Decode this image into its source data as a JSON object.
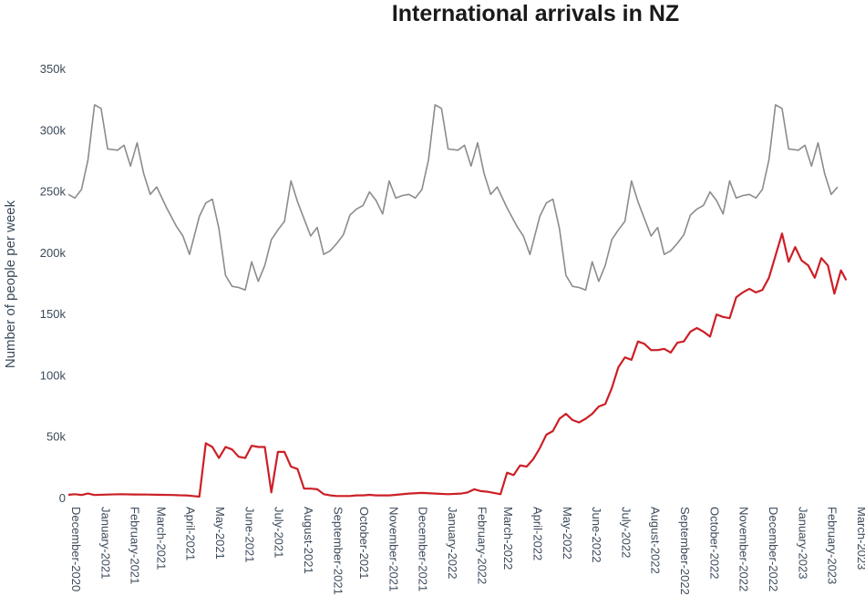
{
  "chart_data": {
    "type": "line",
    "title": "International arrivals in NZ",
    "xlabel": "",
    "ylabel": "Number of people per week",
    "ylim": [
      0,
      350000
    ],
    "yticks": [
      {
        "value": 0,
        "label": "0"
      },
      {
        "value": 50000,
        "label": "50k"
      },
      {
        "value": 100000,
        "label": "100k"
      },
      {
        "value": 150000,
        "label": "150k"
      },
      {
        "value": 200000,
        "label": "200k"
      },
      {
        "value": 250000,
        "label": "250k"
      },
      {
        "value": 300000,
        "label": "300k"
      },
      {
        "value": 350000,
        "label": "350k"
      }
    ],
    "xlim": [
      0,
      120
    ],
    "xticks": [
      {
        "value": 0,
        "label": "December-2020"
      },
      {
        "value": 4.5,
        "label": "January-2021"
      },
      {
        "value": 9,
        "label": "February-2021"
      },
      {
        "value": 13,
        "label": "March-2021"
      },
      {
        "value": 17.5,
        "label": "April-2021"
      },
      {
        "value": 22,
        "label": "May-2021"
      },
      {
        "value": 26.5,
        "label": "June-2021"
      },
      {
        "value": 31,
        "label": "July-2021"
      },
      {
        "value": 35.5,
        "label": "August-2021"
      },
      {
        "value": 40,
        "label": "September-2021"
      },
      {
        "value": 44,
        "label": "October-2021"
      },
      {
        "value": 48.5,
        "label": "November-2021"
      },
      {
        "value": 53,
        "label": "December-2021"
      },
      {
        "value": 57.5,
        "label": "January-2022"
      },
      {
        "value": 62,
        "label": "February-2022"
      },
      {
        "value": 66,
        "label": "March-2022"
      },
      {
        "value": 70.5,
        "label": "April-2022"
      },
      {
        "value": 75,
        "label": "May-2022"
      },
      {
        "value": 79.5,
        "label": "June-2022"
      },
      {
        "value": 84,
        "label": "July-2022"
      },
      {
        "value": 88.5,
        "label": "August-2022"
      },
      {
        "value": 93,
        "label": "September-2022"
      },
      {
        "value": 97.5,
        "label": "October-2022"
      },
      {
        "value": 102,
        "label": "November-2022"
      },
      {
        "value": 106.5,
        "label": "December-2022"
      },
      {
        "value": 111,
        "label": "January-2023"
      },
      {
        "value": 115.5,
        "label": "February-2023"
      },
      {
        "value": 120,
        "label": "March-2023"
      }
    ],
    "grid": false,
    "legend": false,
    "series": [
      {
        "color": "#8c8c8c",
        "points": [
          [
            0,
            248000
          ],
          [
            1,
            245000
          ],
          [
            2,
            252000
          ],
          [
            3,
            276000
          ],
          [
            4,
            321000
          ],
          [
            5,
            318000
          ],
          [
            6,
            285000
          ],
          [
            7.5,
            284000
          ],
          [
            8.5,
            288000
          ],
          [
            9.5,
            271000
          ],
          [
            10.5,
            290000
          ],
          [
            11.5,
            265000
          ],
          [
            12.5,
            248000
          ],
          [
            13.5,
            254000
          ],
          [
            15,
            237000
          ],
          [
            16.5,
            222000
          ],
          [
            17.5,
            214000
          ],
          [
            18.5,
            199000
          ],
          [
            20,
            230000
          ],
          [
            21,
            241000
          ],
          [
            22,
            244000
          ],
          [
            23,
            220000
          ],
          [
            24,
            182000
          ],
          [
            25,
            173000
          ],
          [
            26,
            172000
          ],
          [
            27,
            170000
          ],
          [
            28,
            193000
          ],
          [
            29,
            177000
          ],
          [
            30,
            190000
          ],
          [
            31,
            211000
          ],
          [
            32,
            219000
          ],
          [
            33,
            226000
          ],
          [
            34,
            259000
          ],
          [
            35,
            242000
          ],
          [
            36,
            228000
          ],
          [
            37,
            214000
          ],
          [
            38,
            221000
          ],
          [
            39,
            199000
          ],
          [
            40,
            202000
          ],
          [
            41,
            208000
          ],
          [
            42,
            215000
          ],
          [
            43,
            231000
          ],
          [
            44,
            236000
          ],
          [
            45,
            239000
          ],
          [
            46,
            250000
          ],
          [
            47,
            243000
          ],
          [
            48,
            232000
          ],
          [
            49,
            259000
          ],
          [
            50,
            245000
          ],
          [
            51,
            247000
          ],
          [
            52,
            248000
          ],
          [
            53,
            245000
          ],
          [
            54,
            252000
          ],
          [
            55,
            276000
          ],
          [
            56,
            321000
          ],
          [
            57,
            318000
          ],
          [
            58,
            285000
          ],
          [
            59.5,
            284000
          ],
          [
            60.5,
            288000
          ],
          [
            61.5,
            271000
          ],
          [
            62.5,
            290000
          ],
          [
            63.5,
            265000
          ],
          [
            64.5,
            248000
          ],
          [
            65.5,
            254000
          ],
          [
            67,
            237000
          ],
          [
            68.5,
            222000
          ],
          [
            69.5,
            214000
          ],
          [
            70.5,
            199000
          ],
          [
            72,
            230000
          ],
          [
            73,
            241000
          ],
          [
            74,
            244000
          ],
          [
            75,
            220000
          ],
          [
            76,
            182000
          ],
          [
            77,
            173000
          ],
          [
            78,
            172000
          ],
          [
            79,
            170000
          ],
          [
            80,
            193000
          ],
          [
            81,
            177000
          ],
          [
            82,
            190000
          ],
          [
            83,
            211000
          ],
          [
            84,
            219000
          ],
          [
            85,
            226000
          ],
          [
            86,
            259000
          ],
          [
            87,
            242000
          ],
          [
            88,
            228000
          ],
          [
            89,
            214000
          ],
          [
            90,
            221000
          ],
          [
            91,
            199000
          ],
          [
            92,
            202000
          ],
          [
            93,
            208000
          ],
          [
            94,
            215000
          ],
          [
            95,
            231000
          ],
          [
            96,
            236000
          ],
          [
            97,
            239000
          ],
          [
            98,
            250000
          ],
          [
            99,
            243000
          ],
          [
            100,
            232000
          ],
          [
            101,
            259000
          ],
          [
            102,
            245000
          ],
          [
            103,
            247000
          ],
          [
            104,
            248000
          ],
          [
            105,
            245000
          ],
          [
            106,
            252000
          ],
          [
            107,
            276000
          ],
          [
            108,
            321000
          ],
          [
            109,
            318000
          ],
          [
            110,
            285000
          ],
          [
            111.5,
            284000
          ],
          [
            112.5,
            288000
          ],
          [
            113.5,
            271000
          ],
          [
            114.5,
            290000
          ],
          [
            115.5,
            265000
          ],
          [
            116.5,
            248000
          ],
          [
            117.5,
            254000
          ]
        ]
      },
      {
        "color": "#cc1f26",
        "points": [
          [
            0,
            3000
          ],
          [
            1,
            3500
          ],
          [
            2,
            2800
          ],
          [
            3,
            4000
          ],
          [
            4,
            2800
          ],
          [
            6,
            3200
          ],
          [
            8,
            3500
          ],
          [
            10,
            3300
          ],
          [
            12,
            3200
          ],
          [
            14,
            3000
          ],
          [
            16,
            2800
          ],
          [
            17,
            2600
          ],
          [
            18,
            2500
          ],
          [
            19,
            2000
          ],
          [
            20,
            1500
          ],
          [
            21,
            45000
          ],
          [
            22,
            42000
          ],
          [
            23,
            33000
          ],
          [
            24,
            42000
          ],
          [
            25,
            40000
          ],
          [
            26,
            34000
          ],
          [
            27,
            33000
          ],
          [
            28,
            43000
          ],
          [
            29,
            42000
          ],
          [
            30,
            42000
          ],
          [
            31,
            5000
          ],
          [
            32,
            38000
          ],
          [
            33,
            38000
          ],
          [
            34,
            26000
          ],
          [
            35,
            24000
          ],
          [
            36,
            8000
          ],
          [
            37,
            8000
          ],
          [
            38,
            7500
          ],
          [
            39,
            3500
          ],
          [
            40,
            2500
          ],
          [
            41,
            2000
          ],
          [
            42,
            2000
          ],
          [
            43,
            2000
          ],
          [
            44,
            2500
          ],
          [
            45,
            2500
          ],
          [
            46,
            3000
          ],
          [
            47,
            2500
          ],
          [
            48,
            2500
          ],
          [
            49,
            2500
          ],
          [
            50,
            3000
          ],
          [
            52,
            4000
          ],
          [
            54,
            4500
          ],
          [
            56,
            4000
          ],
          [
            58,
            3500
          ],
          [
            60,
            4000
          ],
          [
            61,
            5000
          ],
          [
            62,
            7500
          ],
          [
            63,
            6000
          ],
          [
            64,
            5500
          ],
          [
            65,
            4500
          ],
          [
            66,
            3500
          ],
          [
            67,
            21000
          ],
          [
            68,
            19000
          ],
          [
            69,
            27000
          ],
          [
            70,
            26000
          ],
          [
            71,
            32000
          ],
          [
            72,
            41000
          ],
          [
            73,
            52000
          ],
          [
            74,
            55000
          ],
          [
            75,
            65000
          ],
          [
            76,
            69000
          ],
          [
            77,
            64000
          ],
          [
            78,
            62000
          ],
          [
            79,
            65000
          ],
          [
            80,
            69000
          ],
          [
            81,
            75000
          ],
          [
            82,
            77000
          ],
          [
            83,
            90000
          ],
          [
            84,
            107000
          ],
          [
            85,
            115000
          ],
          [
            86,
            113000
          ],
          [
            87,
            128000
          ],
          [
            88,
            126000
          ],
          [
            89,
            121000
          ],
          [
            90,
            121000
          ],
          [
            91,
            122000
          ],
          [
            92,
            119000
          ],
          [
            93,
            127000
          ],
          [
            94,
            128000
          ],
          [
            95,
            136000
          ],
          [
            96,
            139000
          ],
          [
            97,
            136000
          ],
          [
            98,
            132000
          ],
          [
            99,
            150000
          ],
          [
            100,
            148000
          ],
          [
            101,
            147000
          ],
          [
            102,
            164000
          ],
          [
            103,
            168000
          ],
          [
            104,
            171000
          ],
          [
            105,
            168000
          ],
          [
            106,
            170000
          ],
          [
            107,
            180000
          ],
          [
            108,
            198000
          ],
          [
            109,
            216000
          ],
          [
            110,
            193000
          ],
          [
            111,
            205000
          ],
          [
            112,
            194000
          ],
          [
            113,
            190000
          ],
          [
            114,
            180000
          ],
          [
            115,
            196000
          ],
          [
            116,
            190000
          ],
          [
            117,
            167000
          ],
          [
            118,
            186000
          ],
          [
            118.8,
            178000
          ]
        ]
      }
    ]
  }
}
